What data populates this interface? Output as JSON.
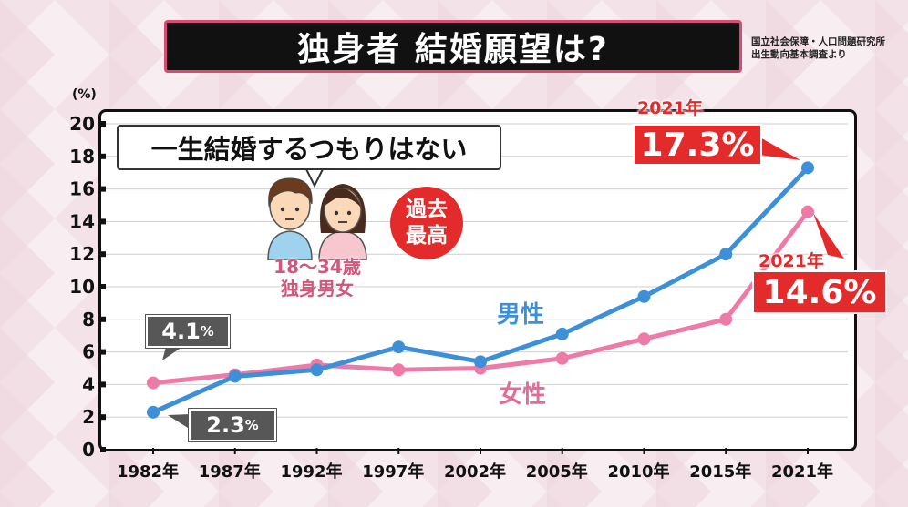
{
  "title": "独身者 結婚願望は?",
  "source_lines": [
    "国立社会保障・人口問題研究所",
    "出生動向基本調査より"
  ],
  "unit": "(%)",
  "headline": "一生結婚するつもりはない",
  "badge": [
    "過去",
    "最高"
  ],
  "age_group": [
    "18〜34歳",
    "独身男女"
  ],
  "callouts": {
    "female_1982": {
      "value": "4.1",
      "unit": "%"
    },
    "male_1982": {
      "value": "2.3",
      "unit": "%"
    },
    "male_2021": {
      "year": "2021年",
      "value": "17.3",
      "unit": "%"
    },
    "female_2021": {
      "year": "2021年",
      "value": "14.6",
      "unit": "%"
    }
  },
  "colors": {
    "male": "#3d8fd8",
    "female": "#ee7aa7",
    "highlight_red": "#e32b2b",
    "title_border": "#d84b73"
  },
  "chart_data": {
    "type": "line",
    "categories": [
      "1982年",
      "1987年",
      "1992年",
      "1997年",
      "2002年",
      "2005年",
      "2010年",
      "2015年",
      "2021年"
    ],
    "series": [
      {
        "name": "男性",
        "values": [
          2.3,
          4.5,
          4.9,
          6.3,
          5.4,
          7.1,
          9.4,
          12.0,
          17.3
        ]
      },
      {
        "name": "女性",
        "values": [
          4.1,
          4.6,
          5.2,
          4.9,
          5.0,
          5.6,
          6.8,
          8.0,
          14.6
        ]
      }
    ],
    "ylim": [
      0,
      20
    ],
    "yticks": [
      0,
      2,
      4,
      6,
      8,
      10,
      12,
      14,
      16,
      18,
      20
    ],
    "grid": true,
    "legend": "inline-labels"
  }
}
